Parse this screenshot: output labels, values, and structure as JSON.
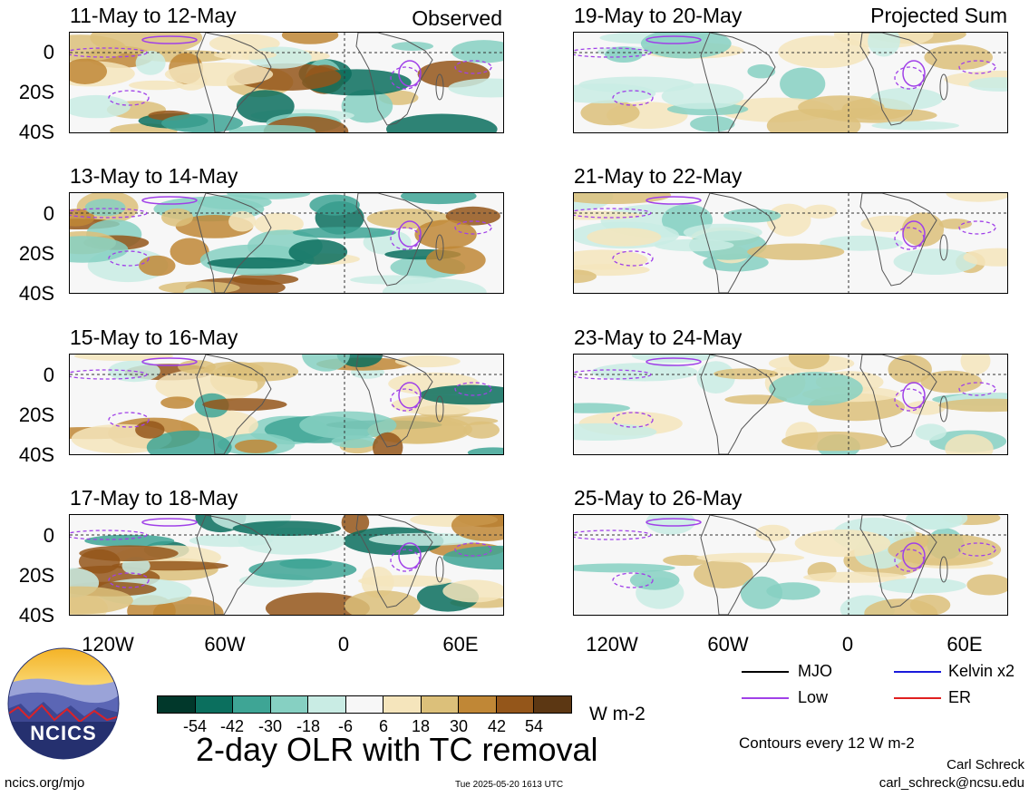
{
  "observed_tag": "Observed",
  "projected_tag": "Projected Sum",
  "panels_left": [
    {
      "title": "11-May to 12-May"
    },
    {
      "title": "13-May to 14-May"
    },
    {
      "title": "15-May to 16-May"
    },
    {
      "title": "17-May to 18-May"
    }
  ],
  "panels_right": [
    {
      "title": "19-May to 20-May"
    },
    {
      "title": "21-May to 22-May"
    },
    {
      "title": "23-May to 24-May"
    },
    {
      "title": "25-May to 26-May"
    }
  ],
  "y_ticks": [
    "0",
    "20S",
    "40S"
  ],
  "x_ticks": [
    "120W",
    "60W",
    "0",
    "60E"
  ],
  "legend": {
    "mjo": "MJO",
    "kelvin": "Kelvin x2",
    "low": "Low",
    "er": "ER",
    "colors": {
      "mjo": "#000000",
      "kelvin": "#1a1adc",
      "low": "#a040e8",
      "er": "#e02020"
    }
  },
  "colorbar": {
    "labels": [
      "-54",
      "-42",
      "-30",
      "-18",
      "-6",
      "6",
      "18",
      "30",
      "42",
      "54"
    ],
    "colors": [
      "#01382b",
      "#0b6f5e",
      "#3ea595",
      "#86d0c2",
      "#c9ece4",
      "#f7f7f7",
      "#f5e5bc",
      "#dcc07a",
      "#c08736",
      "#94561a",
      "#5c3713"
    ],
    "units": "W m-2"
  },
  "title": "2-day OLR with TC removal",
  "contours_note": "Contours every 12 W m-2",
  "author": "Carl Schreck",
  "email": "carl_schreck@ncsu.edu",
  "url": "ncics.org/mjo",
  "timestamp": "Tue 2025-05-20 1613 UTC",
  "logo_text": "NCICS"
}
